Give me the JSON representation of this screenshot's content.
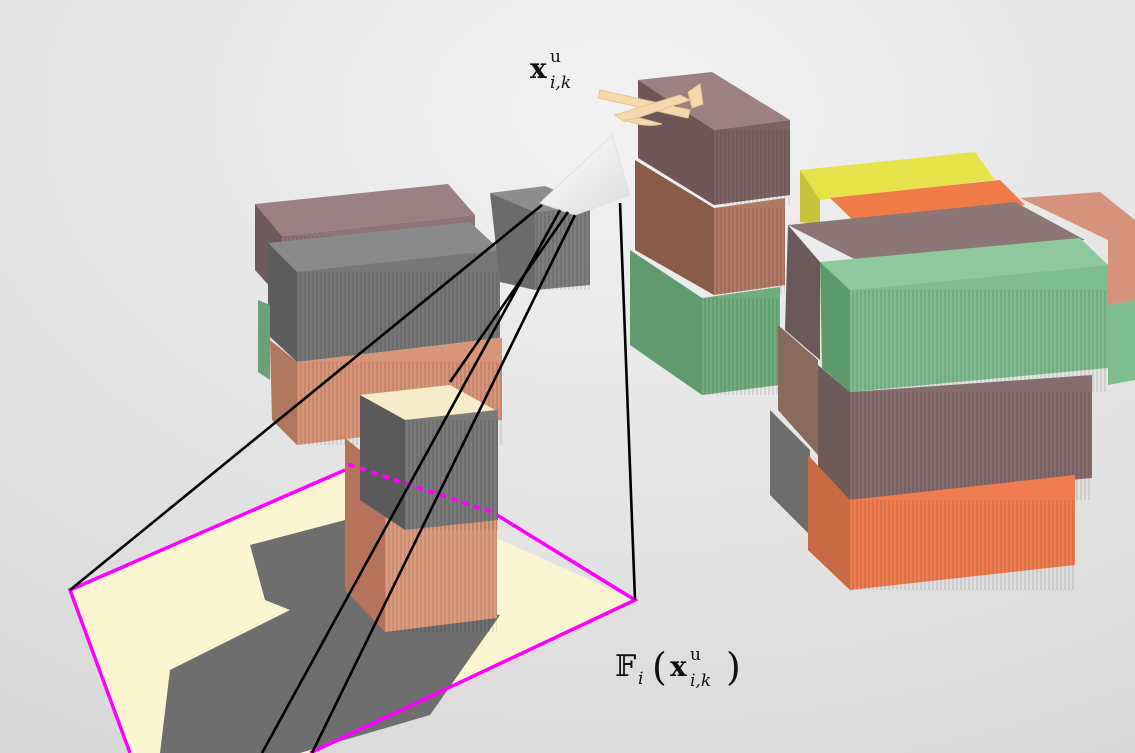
{
  "labels": {
    "uav_position": {
      "main": "x",
      "sup": "u",
      "sub": "i,k"
    },
    "footprint": {
      "op": "𝔽",
      "op_sub": "i",
      "arg_main": "x",
      "arg_sup": "u",
      "arg_sub": "i,k"
    }
  },
  "colors": {
    "ground": "#e6e6e6",
    "footprint_border": "#ff00ff",
    "footprint_fill": "#fbf6cf",
    "shadow": "#6e6e6e",
    "frustum_line": "#000000"
  }
}
